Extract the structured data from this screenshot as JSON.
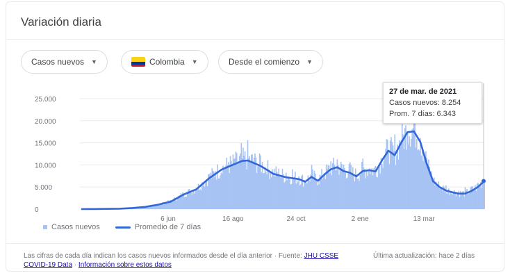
{
  "card": {
    "title": "Variación diaria"
  },
  "filters": {
    "metric": "Casos nuevos",
    "country": "Colombia",
    "period": "Desde el comienzo"
  },
  "tooltip": {
    "date": "27 de mar. de 2021",
    "cases": "Casos nuevos: 8.254",
    "avg": "Prom. 7 días: 6.343"
  },
  "footer": {
    "note": "Las cifras de cada día indican los casos nuevos informados desde el día anterior",
    "updated": "Última actualización: hace 2 días",
    "source_prefix": "Fuente:",
    "source_link": "JHU CSSE COVID-19 Data",
    "info_link": "Información sobre estos datos"
  },
  "colors": {
    "bars": "#a7c3f4",
    "line": "#3367d6",
    "grid": "#ebebeb",
    "text": "#70757a"
  },
  "chart_data": {
    "type": "bar",
    "xlabel": "",
    "ylabel": "",
    "ylim": [
      0,
      25000
    ],
    "yticks": [
      "0",
      "5.000",
      "10.000",
      "15.000",
      "20.000",
      "25.000"
    ],
    "ytick_values": [
      0,
      5000,
      10000,
      15000,
      20000,
      25000
    ],
    "xticks": [
      "6 jun",
      "16 ago",
      "24 oct",
      "2 ene",
      "13 mar"
    ],
    "xtick_positions": [
      95,
      166,
      235,
      305,
      375
    ],
    "legend": [
      "Casos nuevos",
      "Promedio de 7 días"
    ],
    "legend_position": "bottom-left",
    "grid": true,
    "days": 391,
    "series": [
      {
        "name": "Promedio de 7 días",
        "type": "line",
        "points": [
          [
            0,
            0
          ],
          [
            14,
            10
          ],
          [
            28,
            40
          ],
          [
            42,
            100
          ],
          [
            56,
            250
          ],
          [
            70,
            500
          ],
          [
            84,
            1000
          ],
          [
            98,
            1700
          ],
          [
            112,
            3300
          ],
          [
            126,
            4500
          ],
          [
            140,
            7000
          ],
          [
            154,
            9000
          ],
          [
            168,
            10200
          ],
          [
            176,
            10900
          ],
          [
            182,
            11000
          ],
          [
            196,
            9800
          ],
          [
            210,
            8000
          ],
          [
            224,
            7200
          ],
          [
            238,
            6800
          ],
          [
            245,
            6200
          ],
          [
            252,
            7300
          ],
          [
            259,
            6400
          ],
          [
            266,
            7800
          ],
          [
            273,
            9000
          ],
          [
            280,
            9500
          ],
          [
            287,
            8600
          ],
          [
            294,
            8200
          ],
          [
            301,
            7400
          ],
          [
            308,
            8600
          ],
          [
            315,
            8800
          ],
          [
            322,
            8500
          ],
          [
            329,
            11000
          ],
          [
            336,
            13200
          ],
          [
            343,
            12200
          ],
          [
            350,
            15000
          ],
          [
            357,
            17400
          ],
          [
            364,
            17600
          ],
          [
            371,
            15200
          ],
          [
            378,
            10300
          ],
          [
            385,
            6300
          ],
          [
            392,
            5000
          ],
          [
            399,
            4200
          ],
          [
            406,
            3800
          ],
          [
            413,
            3500
          ],
          [
            420,
            3500
          ],
          [
            427,
            4100
          ],
          [
            434,
            5000
          ],
          [
            441,
            6343
          ]
        ]
      },
      {
        "name": "Casos nuevos",
        "type": "bar",
        "note": "daily bars follow the 7-day average with day-to-day variation"
      }
    ]
  }
}
